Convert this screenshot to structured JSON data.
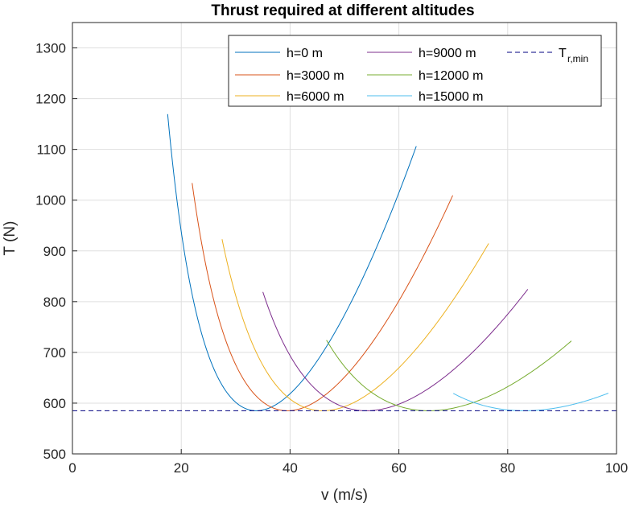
{
  "chart_data": {
    "type": "line",
    "title": "Thrust required at different altitudes",
    "xlabel": "v (m/s)",
    "ylabel": "T (N)",
    "xlim": [
      0,
      100
    ],
    "ylim": [
      500,
      1350
    ],
    "xticks": [
      0,
      20,
      40,
      60,
      80,
      100
    ],
    "yticks": [
      500,
      600,
      700,
      800,
      900,
      1000,
      1100,
      1200,
      1300
    ],
    "grid": true,
    "legend": {
      "placement": "top-right",
      "columns": 3
    },
    "series": [
      {
        "name": "h=0 m",
        "color": "#0072BD",
        "v_range": [
          17.5,
          63.2
        ],
        "T_min": 585,
        "v_at_T_min": 33.8,
        "T_at_ends": 1140
      },
      {
        "name": "h=3000 m",
        "color": "#D95319",
        "v_range": [
          22.0,
          69.9
        ],
        "T_min": 585,
        "v_at_T_min": 39.5,
        "T_at_ends": 1023
      },
      {
        "name": "h=6000 m",
        "color": "#EDB120",
        "v_range": [
          27.5,
          76.5
        ],
        "T_min": 585,
        "v_at_T_min": 46.0,
        "T_at_ends": 920
      },
      {
        "name": "h=9000 m",
        "color": "#7E2F8E",
        "v_range": [
          35.0,
          83.7
        ],
        "T_min": 585,
        "v_at_T_min": 54.0,
        "T_at_ends": 825
      },
      {
        "name": "h=12000 m",
        "color": "#77AC30",
        "v_range": [
          46.7,
          91.7
        ],
        "T_min": 585,
        "v_at_T_min": 65.5,
        "T_at_ends": 728
      },
      {
        "name": "h=15000 m",
        "color": "#4DBEEE",
        "v_range": [
          70.0,
          98.5
        ],
        "T_min": 585,
        "v_at_T_min": 83.0,
        "T_at_ends": 620
      }
    ],
    "reference_line": {
      "label_main": "T",
      "label_sub": "r,min",
      "y": 585,
      "color": "#000080",
      "style": "dashed"
    }
  }
}
